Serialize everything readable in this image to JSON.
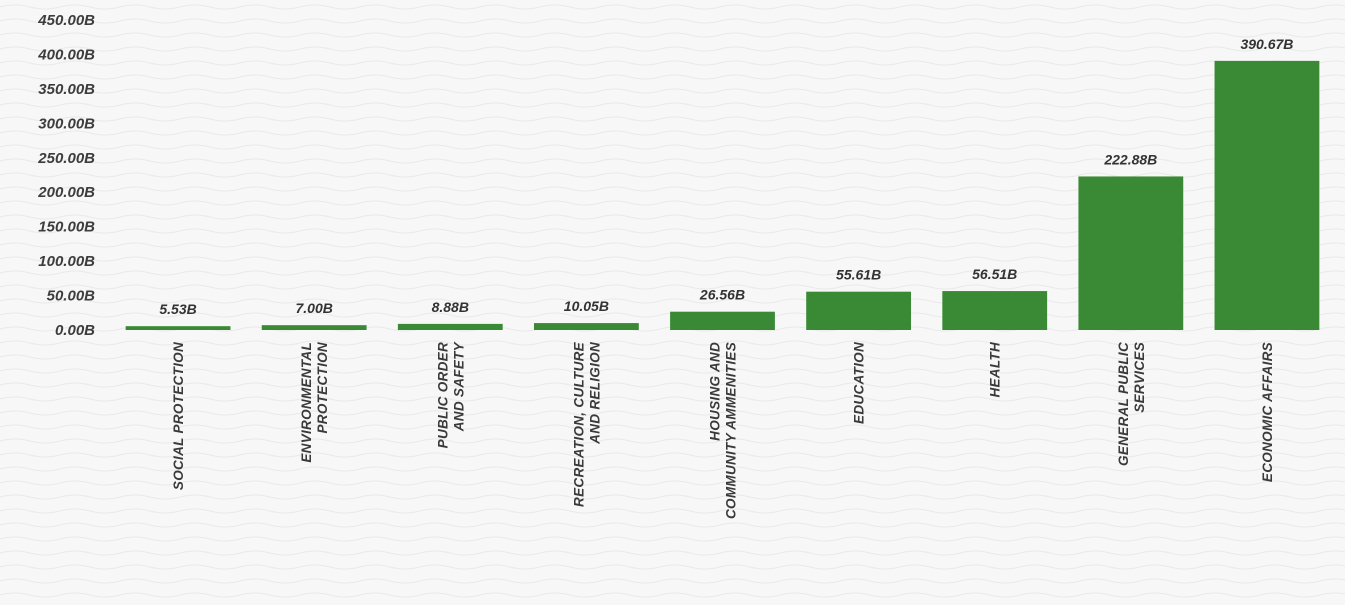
{
  "chart_data": {
    "type": "bar",
    "title": "",
    "xlabel": "",
    "ylabel": "",
    "ylim": [
      0,
      450
    ],
    "y_ticks": [
      "0.00B",
      "50.00B",
      "100.00B",
      "150.00B",
      "200.00B",
      "250.00B",
      "300.00B",
      "350.00B",
      "400.00B",
      "450.00B"
    ],
    "grid": false,
    "legend": "none",
    "categories": [
      "SOCIAL PROTECTION",
      "ENVIRONMENTAL PROTECTION",
      "PUBLIC ORDER AND SAFETY",
      "RECREATION, CULTURE AND RELIGION",
      "HOUSING AND COMMUNITY AMMENITIES",
      "EDUCATION",
      "HEALTH",
      "GENERAL PUBLIC SERVICES",
      "ECONOMIC AFFAIRS"
    ],
    "values": [
      5.53,
      7.0,
      8.88,
      10.05,
      26.56,
      55.61,
      56.51,
      222.88,
      390.67
    ],
    "value_labels": [
      "5.53B",
      "7.00B",
      "8.88B",
      "10.05B",
      "26.56B",
      "55.61B",
      "56.51B",
      "222.88B",
      "390.67B"
    ],
    "colors": {
      "bar": "#3a8a35",
      "text": "#3a3a3a",
      "background": "#f7f7f7"
    }
  }
}
